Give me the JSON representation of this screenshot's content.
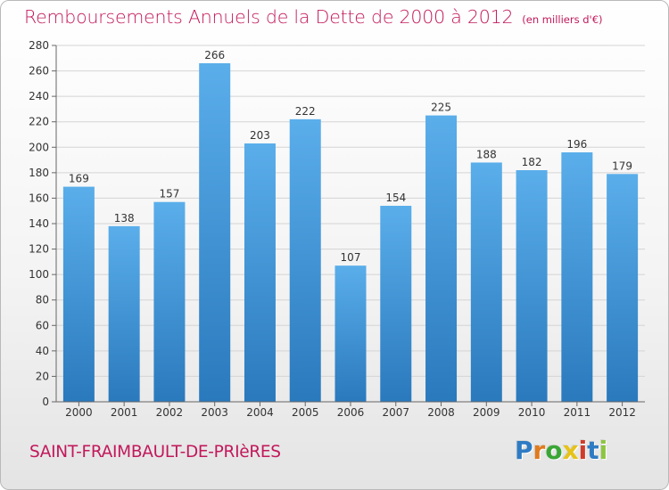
{
  "header": {
    "title": "Remboursements Annuels de la Dette de 2000 à 2012",
    "subtitle": "(en milliers d'€)"
  },
  "commune": "SAINT-FRAIMBAULT-DE-PRIèRES",
  "brand": {
    "letters": [
      "P",
      "r",
      "o",
      "x",
      "i",
      "t",
      "i"
    ],
    "colors": [
      "#2e7bc4",
      "#e07a1f",
      "#3aa635",
      "#e7c21a",
      "#d23b2a",
      "#2e7bc4",
      "#8cc63f"
    ]
  },
  "colors": {
    "bar_light": "#5aaeea",
    "bar_dark": "#2a79bd",
    "grid": "#d4d4d4",
    "axis": "#666666",
    "text": "#333333",
    "accent": "#c2185b"
  },
  "chart_data": {
    "type": "bar",
    "categories": [
      "2000",
      "2001",
      "2002",
      "2003",
      "2004",
      "2005",
      "2006",
      "2007",
      "2008",
      "2009",
      "2010",
      "2011",
      "2012"
    ],
    "values": [
      169,
      138,
      157,
      266,
      203,
      222,
      107,
      154,
      225,
      188,
      182,
      196,
      179
    ],
    "ylim": [
      0,
      280
    ],
    "yticks": [
      0,
      20,
      40,
      60,
      80,
      100,
      120,
      140,
      160,
      180,
      200,
      220,
      240,
      260,
      280
    ],
    "grid": true,
    "data_labels": true
  }
}
